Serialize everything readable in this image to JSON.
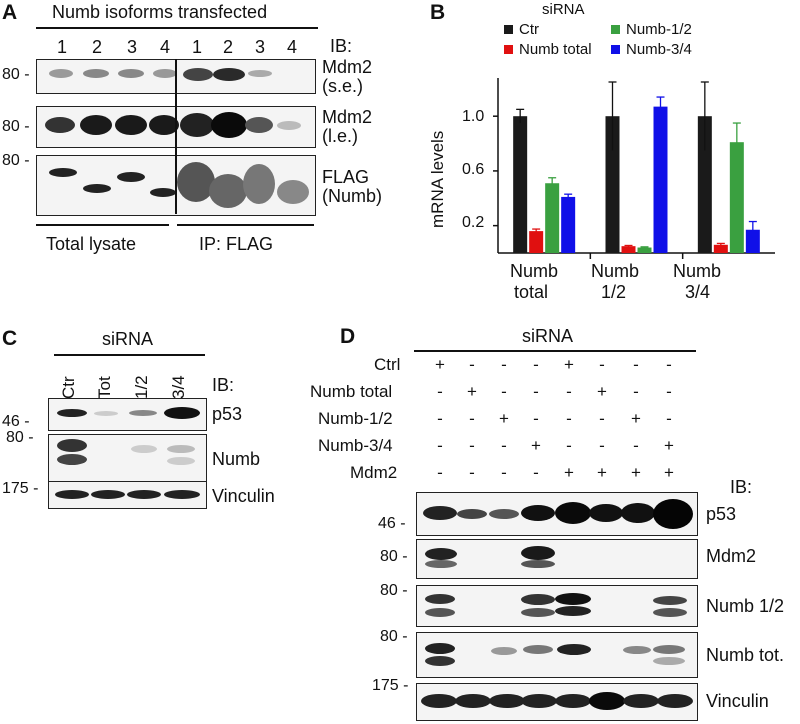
{
  "panelA": {
    "letter": "A",
    "header": "Numb isoforms transfected",
    "lanes": [
      "1",
      "2",
      "3",
      "4",
      "1",
      "2",
      "3",
      "4"
    ],
    "ib": "IB:",
    "mw": [
      "80 -",
      "80 -",
      "80 -"
    ],
    "blot_labels": [
      [
        "Mdm2",
        "(s.e.)"
      ],
      [
        "Mdm2",
        "(l.e.)"
      ],
      [
        "FLAG",
        "(Numb)"
      ]
    ],
    "footer_left": "Total lysate",
    "footer_right": "IP: FLAG"
  },
  "panelB": {
    "letter": "B",
    "legend_title": "siRNA",
    "ylabel": "mRNA levels",
    "yticks": [
      "1.0",
      "0.6",
      "0.2"
    ],
    "groups": [
      [
        "Numb",
        "total"
      ],
      [
        "Numb",
        "1/2"
      ],
      [
        "Numb",
        "3/4"
      ]
    ]
  },
  "chart_data": {
    "type": "bar",
    "title": "siRNA",
    "ylabel": "mRNA levels",
    "xlabel": "",
    "categories": [
      "Numb total",
      "Numb 1/2",
      "Numb 3/4"
    ],
    "ylim": [
      0,
      1.25
    ],
    "yticks": [
      0.2,
      0.6,
      1.0
    ],
    "legend_position": "top",
    "series": [
      {
        "name": "Ctr",
        "color": "#1a1a1a",
        "values": [
          1.0,
          1.0,
          1.0
        ],
        "errors": [
          0.05,
          0.25,
          0.25
        ]
      },
      {
        "name": "Numb total",
        "color": "#e01010",
        "values": [
          0.16,
          0.05,
          0.06
        ],
        "errors": [
          0.015,
          0.005,
          0.01
        ]
      },
      {
        "name": "Numb-1/2",
        "color": "#3aa040",
        "values": [
          0.51,
          0.04,
          0.81
        ],
        "errors": [
          0.04,
          0.005,
          0.14
        ]
      },
      {
        "name": "Numb-3/4",
        "color": "#1010e8",
        "values": [
          0.41,
          1.07,
          0.17
        ],
        "errors": [
          0.02,
          0.07,
          0.06
        ]
      }
    ]
  },
  "panelC": {
    "letter": "C",
    "header": "siRNA",
    "lanes": [
      "Ctr",
      "Tot",
      "1/2",
      "3/4"
    ],
    "ib": "IB:",
    "mw": [
      "46 -",
      "80 -",
      "175 -"
    ],
    "blot_labels": [
      "p53",
      "Numb",
      "Vinculin"
    ]
  },
  "panelD": {
    "letter": "D",
    "header": "siRNA",
    "rows": [
      {
        "label": "Ctrl",
        "signs": [
          "+",
          "-",
          "-",
          "-",
          "+",
          "-",
          "-",
          "-"
        ]
      },
      {
        "label": "Numb total",
        "signs": [
          "-",
          "+",
          "-",
          "-",
          "-",
          "+",
          "-",
          "-"
        ]
      },
      {
        "label": "Numb-1/2",
        "signs": [
          "-",
          "-",
          "+",
          "-",
          "-",
          "-",
          "+",
          "-"
        ]
      },
      {
        "label": "Numb-3/4",
        "signs": [
          "-",
          "-",
          "-",
          "+",
          "-",
          "-",
          "-",
          "+"
        ]
      },
      {
        "label": "Mdm2",
        "signs": [
          "-",
          "-",
          "-",
          "-",
          "+",
          "+",
          "+",
          "+"
        ]
      }
    ],
    "ib": "IB:",
    "mw": [
      "46 -",
      "80 -",
      "80 -",
      "80 -",
      "175 -"
    ],
    "blot_labels": [
      "p53",
      "Mdm2",
      "Numb 1/2",
      "Numb tot.",
      "Vinculin"
    ]
  }
}
